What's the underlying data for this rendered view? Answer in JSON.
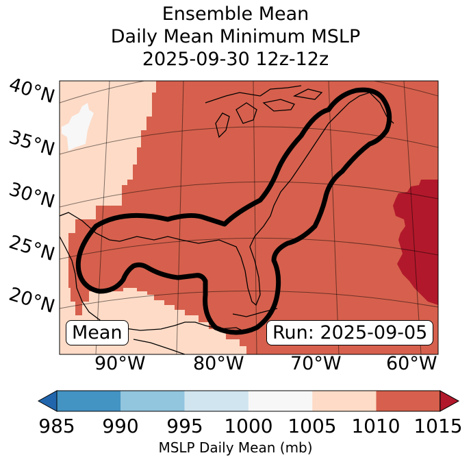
{
  "title_lines": [
    "Ensemble Mean",
    "Daily Mean Minimum MSLP",
    "2025-09-30 12z-12z"
  ],
  "map": {
    "lat_labels": [
      "40°N",
      "35°N",
      "30°N",
      "25°N",
      "20°N"
    ],
    "lon_labels": [
      "90°W",
      "80°W",
      "70°W",
      "60°W"
    ],
    "mean_box": "Mean",
    "run_box": "Run: 2025-09-05",
    "colors": {
      "bin_1005_1010": "#fddbc7",
      "bin_1010_1015": "#d6604d",
      "bin_gt_1015": "#b2182b",
      "bin_1000_1005": "#f7f7f7",
      "contour": "#000000"
    }
  },
  "colorbar": {
    "ticks": [
      "985",
      "990",
      "995",
      "1000",
      "1005",
      "1010",
      "1015"
    ],
    "colors": [
      "#2166ac",
      "#4393c3",
      "#92c5de",
      "#d1e5f0",
      "#f7f7f7",
      "#fddbc7",
      "#d6604d",
      "#b2182b"
    ],
    "label": "MSLP Daily Mean (mb)"
  }
}
